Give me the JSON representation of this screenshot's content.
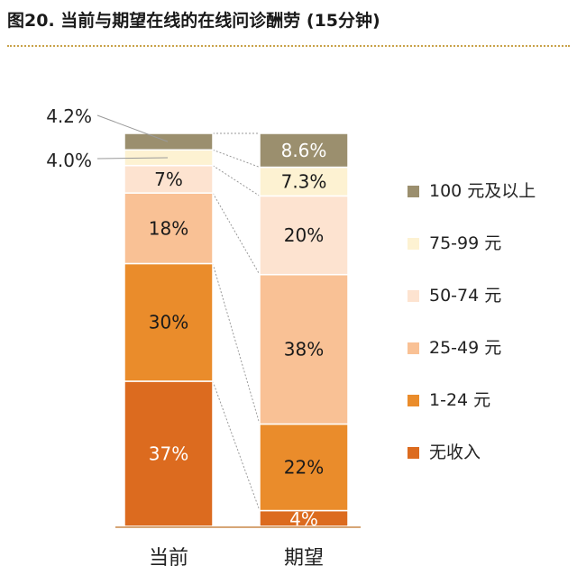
{
  "title": "图20. 当前与期望在线的在线问诊酬劳 (15分钟)",
  "colors": {
    "100_plus": "#9b8f6e",
    "75_99": "#fdf2d2",
    "50_74": "#fde3d0",
    "25_49": "#f9c195",
    "1_24": "#ea8c2b",
    "none": "#dc6b1f",
    "connector": "#9a9a9a",
    "axis": "#c8884a"
  },
  "chart_data": {
    "type": "bar",
    "stacked": true,
    "percent": true,
    "title": "图20. 当前与期望在线的在线问诊酬劳 (15分钟)",
    "categories": [
      "当前",
      "期望"
    ],
    "series": [
      {
        "name": "无收入",
        "values": [
          37,
          4
        ],
        "labels": [
          "37%",
          "4%"
        ],
        "color": "#dc6b1f",
        "text_color": "#ffffff"
      },
      {
        "name": "1-24 元",
        "values": [
          30,
          22
        ],
        "labels": [
          "30%",
          "22%"
        ],
        "color": "#ea8c2b",
        "text_color": "#1a1a1a"
      },
      {
        "name": "25-49 元",
        "values": [
          18,
          38
        ],
        "labels": [
          "18%",
          "38%"
        ],
        "color": "#f9c195",
        "text_color": "#1a1a1a"
      },
      {
        "name": "50-74 元",
        "values": [
          7,
          20
        ],
        "labels": [
          "7%",
          "20%"
        ],
        "color": "#fde3d0",
        "text_color": "#1a1a1a"
      },
      {
        "name": "75-99 元",
        "values": [
          4,
          7.3
        ],
        "labels": [
          "4.0%",
          "7.3%"
        ],
        "color": "#fdf2d2",
        "text_color": "#1a1a1a"
      },
      {
        "name": "100 元及以上",
        "values": [
          4.2,
          8.6
        ],
        "labels": [
          "4.2%",
          "8.6%"
        ],
        "color": "#9b8f6e",
        "text_color": "#ffffff"
      }
    ],
    "legend_position": "right",
    "grid": false
  }
}
